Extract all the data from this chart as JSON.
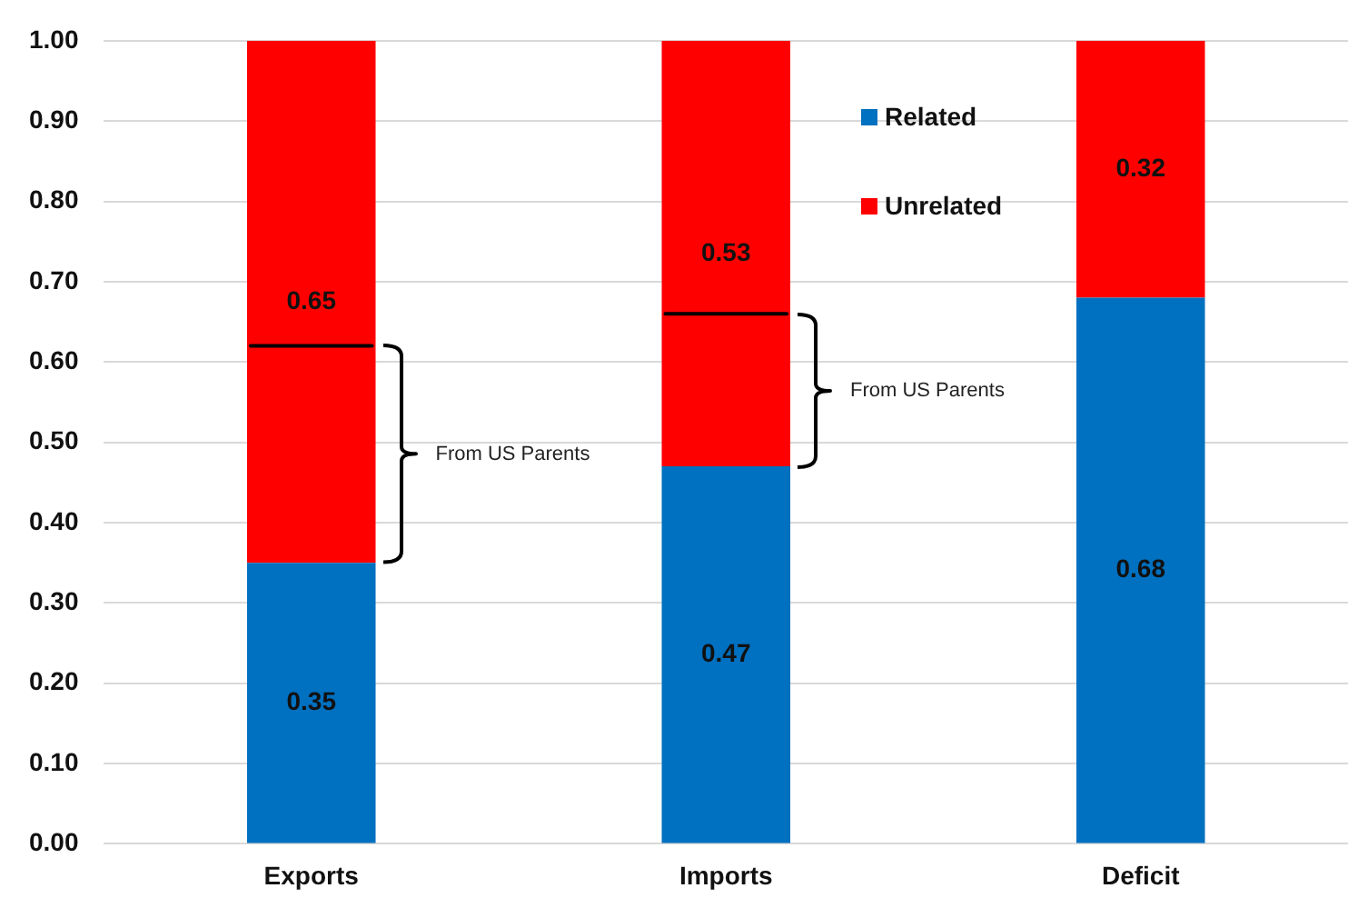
{
  "chart_data": {
    "type": "bar",
    "stacked": true,
    "categories": [
      "Exports",
      "Imports",
      "Deficit"
    ],
    "series": [
      {
        "name": "Related",
        "color": "#0070c0",
        "values": [
          0.35,
          0.47,
          0.68
        ]
      },
      {
        "name": "Unrelated",
        "color": "#ff0000",
        "values": [
          0.65,
          0.53,
          0.32
        ]
      }
    ],
    "ylim": [
      0,
      1
    ],
    "yticks": [
      {
        "value": 0,
        "label": "0.00"
      },
      {
        "value": 0.1,
        "label": "0.10"
      },
      {
        "value": 0.2,
        "label": "0.20"
      },
      {
        "value": 0.3,
        "label": "0.30"
      },
      {
        "value": 0.4,
        "label": "0.40"
      },
      {
        "value": 0.5,
        "label": "0.50"
      },
      {
        "value": 0.6,
        "label": "0.60"
      },
      {
        "value": 0.7,
        "label": "0.70"
      },
      {
        "value": 0.8,
        "label": "0.80"
      },
      {
        "value": 0.9,
        "label": "0.90"
      },
      {
        "value": 1,
        "label": "1.00"
      }
    ],
    "grid": "y",
    "legend": "top right",
    "data_labels": true,
    "annotations": [
      "From US Parents",
      "From US Parents"
    ],
    "ref_lines": [
      {
        "axis": "y",
        "value": 0.62,
        "color": "#000000"
      },
      {
        "axis": "y",
        "value": 0.66,
        "color": "#000000"
      }
    ]
  }
}
